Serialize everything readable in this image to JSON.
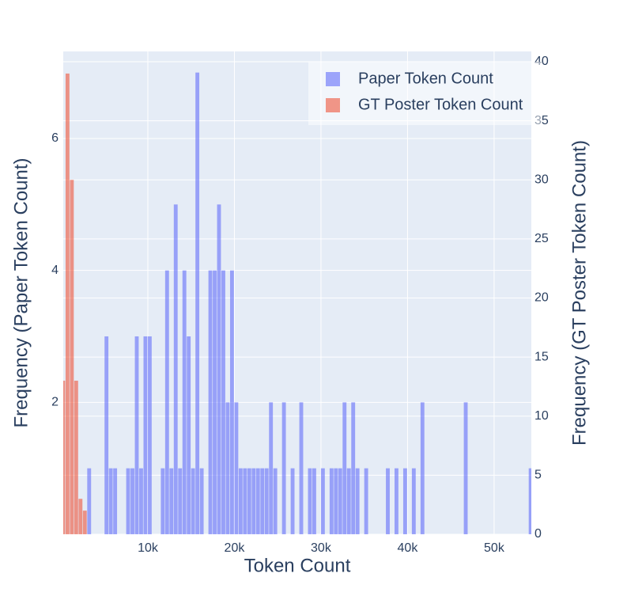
{
  "chart_data": {
    "type": "histogram",
    "xlabel": "Token Count",
    "ylabel": "Frequency (Paper Token Count)",
    "y2label": "Frequency (GT Poster Token Count)",
    "barmode": "overlay",
    "opacity": 0.6,
    "grid": true,
    "legend": "top-right",
    "xlim": [
      230,
      54300
    ],
    "xticks": [
      {
        "value": 10000,
        "label": "10k"
      },
      {
        "value": 20000,
        "label": "20k"
      },
      {
        "value": 30000,
        "label": "30k"
      },
      {
        "value": 40000,
        "label": "40k"
      },
      {
        "value": 50000,
        "label": "50k"
      }
    ],
    "ylim": [
      0,
      7.32
    ],
    "yticks": [
      2,
      4,
      6
    ],
    "y2lim": [
      0,
      40.87
    ],
    "y2ticks": [
      0,
      5,
      10,
      15,
      20,
      25,
      30,
      35,
      40
    ],
    "series": [
      {
        "name": "Paper Token Count",
        "color": "#636efa",
        "bins": [
          3000,
          3500,
          4000,
          4500,
          5000,
          5500,
          6000,
          6500,
          7000,
          7500,
          8000,
          8500,
          9000,
          9500,
          10000,
          10500,
          11000,
          11500,
          12000,
          12500,
          13000,
          13500,
          14000,
          14500,
          15000,
          15500,
          16000,
          16500,
          17000,
          17500,
          18000,
          18500,
          19000,
          19500,
          20000,
          20500,
          21000,
          21500,
          22000,
          22500,
          23000,
          23500,
          24000,
          24500,
          25000,
          25500,
          26000,
          26500,
          27000,
          27500,
          28000,
          28500,
          29000,
          29500,
          30000,
          30500,
          31000,
          31500,
          32000,
          32500,
          33000,
          33500,
          34000,
          34500,
          35000,
          35500,
          36000,
          36500,
          37000,
          37500,
          38000,
          38500,
          39000,
          39500,
          40000,
          40500,
          41000,
          41500,
          42000,
          42500,
          43000,
          43500,
          44000,
          44500,
          45000,
          45500,
          46000,
          46500,
          47000,
          47500,
          48000,
          48500,
          49000,
          49500,
          50000,
          50500,
          51000,
          51500,
          52000,
          52500,
          53000,
          53500,
          54000,
          54500
        ],
        "values": [
          1,
          0,
          0,
          0,
          3,
          1,
          1,
          0,
          0,
          1,
          1,
          3,
          1,
          3,
          3,
          0,
          0,
          1,
          4,
          1,
          5,
          1,
          4,
          3,
          1,
          7,
          1,
          0,
          4,
          4,
          5,
          4,
          2,
          4,
          2,
          1,
          1,
          1,
          1,
          1,
          1,
          1,
          2,
          1,
          0,
          2,
          0,
          1,
          0,
          2,
          0,
          1,
          1,
          0,
          1,
          0,
          1,
          1,
          1,
          2,
          1,
          2,
          1,
          0,
          1,
          0,
          0,
          0,
          0,
          1,
          0,
          1,
          0,
          1,
          0,
          1,
          0,
          2,
          0,
          0,
          0,
          0,
          0,
          0,
          0,
          0,
          0,
          2,
          0,
          0,
          0,
          0,
          0,
          0,
          0,
          0,
          0,
          0,
          0,
          0,
          0,
          0,
          1
        ]
      },
      {
        "name": "GT Poster Token Count",
        "color": "#ef553b",
        "axis": "y2",
        "bins": [
          0,
          500,
          1000,
          1500,
          2000,
          2500,
          3000
        ],
        "values": [
          13,
          39,
          30,
          13,
          3,
          2
        ]
      }
    ]
  }
}
